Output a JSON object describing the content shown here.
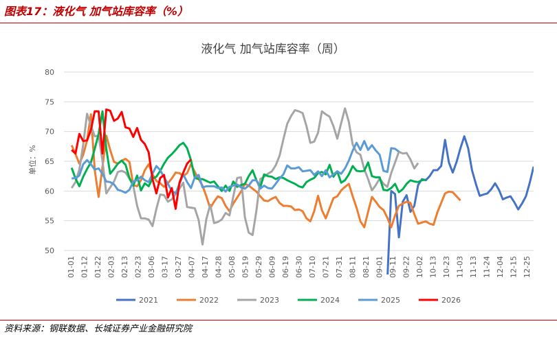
{
  "caption": "图表17：液化气 加气站库容率（%）",
  "source": "资料来源：钢联数据、长城证券产业金融研究院",
  "chart_data": {
    "type": "line",
    "title": "液化气 加气站库容率（周）",
    "ylabel": "单位：%",
    "xlabel": "",
    "ylim": [
      50,
      80
    ],
    "yticks": [
      50,
      55,
      60,
      65,
      70,
      75,
      80
    ],
    "grid": true,
    "legend": "bottom",
    "x_labels": [
      "01-01",
      "01-12",
      "01-22",
      "02-03",
      "02-13",
      "02-23",
      "03-06",
      "03-17",
      "03-27",
      "04-07",
      "04-17",
      "04-28",
      "05-08",
      "05-19",
      "05-29",
      "06-09",
      "06-19",
      "06-30",
      "07-10",
      "07-21",
      "07-31",
      "08-11",
      "08-21",
      "09-01",
      "09-11",
      "09-22",
      "10-02",
      "10-13",
      "10-23",
      "11-03",
      "11-13",
      "11-24",
      "12-04",
      "12-15",
      "12-25"
    ],
    "series": [
      {
        "name": "2021",
        "color": "#4472c4",
        "values": [
          null,
          null,
          null,
          null,
          null,
          null,
          null,
          null,
          null,
          null,
          null,
          null,
          null,
          null,
          null,
          null,
          null,
          null,
          null,
          null,
          null,
          null,
          null,
          null,
          null,
          null,
          null,
          null,
          null,
          null,
          null,
          null,
          null,
          null,
          null,
          null,
          null,
          null,
          null,
          null,
          null,
          null,
          null,
          null,
          null,
          null,
          null,
          null,
          null,
          null,
          null,
          null,
          null,
          null,
          null,
          null,
          null,
          null,
          null,
          null,
          null,
          null,
          null,
          null,
          null,
          null,
          null,
          null,
          null,
          null,
          null,
          null,
          null,
          null,
          null,
          null,
          null,
          null,
          null,
          null,
          null,
          null,
          null,
          null,
          45,
          60,
          59.5,
          52.2,
          58.2,
          59.3,
          56.5,
          57.5,
          61,
          62,
          61.8,
          62.5,
          63.5,
          63.5,
          64.2,
          68.6,
          64.8,
          63.1,
          64.9,
          67.2,
          69.2,
          67.2,
          63.5,
          61.2,
          59.2,
          59.4,
          59.6,
          60.3,
          61.3,
          60.2,
          58.6,
          58.9,
          59.1,
          58.1,
          56.9,
          57.9,
          59.1,
          61.4,
          64.1
        ]
      },
      {
        "name": "2022",
        "color": "#ed7d31",
        "values": [
          null,
          null,
          67.7,
          66.2,
          64.6,
          66.1,
          68.5,
          72.9,
          63.5,
          59.0,
          64.0,
          69.3,
          66.9,
          64.9,
          64.6,
          65.1,
          65.4,
          64.9,
          61.0,
          60.8,
          61.8,
          63.5,
          64.5,
          62.8,
          61.7,
          61.3,
          60.7,
          61.3,
          62.1,
          63.1,
          63.0,
          62.5,
          63.0,
          64.5,
          63.2,
          62.0,
          60.9,
          59.1,
          57.1,
          58.2,
          59.1,
          58.8,
          57.5,
          56.6,
          57.9,
          58.9,
          59.9,
          61.2,
          60.9,
          60.4,
          59.9,
          59.1,
          58.4,
          58.3,
          58.7,
          59.0,
          58.0,
          57.5,
          57.5,
          57.4,
          56.8,
          56.9,
          56.6,
          55.4,
          54.9,
          56.6,
          59.2,
          56.8,
          55.4,
          57.1,
          58.8,
          59.1,
          60.1,
          60.7,
          61.2,
          59.1,
          57.2,
          54.9,
          53.9,
          56.5,
          59.0,
          58.2,
          57.3,
          56.8,
          55.5,
          53.9,
          55.9,
          57.5,
          57.9,
          58.2,
          58.0,
          56.1,
          54.5,
          54.7,
          54.9,
          54.5,
          54.3,
          56.4,
          58.0,
          59.6,
          59.9,
          59.8,
          59.1,
          58.4
        ]
      },
      {
        "name": "2023",
        "color": "#a5a5a5",
        "values": [
          null,
          null,
          60.5,
          61.5,
          63.6,
          67.8,
          73.0,
          71.0,
          69.2,
          69.3,
          65.1,
          59.6,
          60.6,
          61.6,
          63.2,
          63.4,
          63.1,
          62.1,
          60.9,
          57.5,
          55.4,
          55.4,
          55.2,
          54.1,
          57.0,
          59.4,
          59.3,
          58.2,
          58.6,
          59.5,
          60.4,
          61.4,
          57.3,
          57.2,
          57.1,
          55.1,
          51.0,
          55.3,
          57.7,
          54.6,
          54.8,
          55.2,
          56.3,
          55.9,
          59.1,
          62.2,
          62.3,
          55.6,
          53.0,
          52.6,
          56.7,
          62.0,
          62.4,
          62.9,
          63.3,
          64.3,
          65.9,
          68.7,
          71.3,
          72.6,
          73.6,
          73.4,
          73.1,
          70.9,
          68.1,
          68.3,
          69.8,
          73.4,
          72.9,
          72.5,
          70.9,
          68.8,
          71.4,
          73.9,
          71.6,
          67.8,
          66.5,
          66.1,
          63.7,
          62.0,
          60.1,
          61.0,
          62.1,
          61.2,
          60.7,
          63.0,
          64.8,
          66.6,
          66.3,
          66.4,
          65.3,
          63.8,
          64.7
        ]
      },
      {
        "name": "2024",
        "color": "#00b050",
        "values": [
          null,
          null,
          63.9,
          62.1,
          60.8,
          62.4,
          63.7,
          64.8,
          67.1,
          69.6,
          73.4,
          67.1,
          62.9,
          63.7,
          64.6,
          65.1,
          64.4,
          62.2,
          60.9,
          62.6,
          60.1,
          61.3,
          60.8,
          62.1,
          62.4,
          63.4,
          64.6,
          65.6,
          66.2,
          66.9,
          67.7,
          68.1,
          67.2,
          65.2,
          62.2,
          62.0,
          62.0,
          61.7,
          61.4,
          61.6,
          60.8,
          60.0,
          60.9,
          60.0,
          61.6,
          60.7,
          61.0,
          61.2,
          62.5,
          63.5,
          61.8,
          60.6,
          62.8,
          62.5,
          62.4,
          62.0,
          62.3,
          62.2,
          61.8,
          61.5,
          61.2,
          60.8,
          60.6,
          61.5,
          61.9,
          62.2,
          63.0,
          63.2,
          62.8,
          64.4,
          62.4,
          63.3,
          61.4,
          61.8,
          62.8,
          64.2,
          63.4,
          63.3,
          63.4,
          64.8,
          62.5,
          62.3,
          62.3,
          60.2,
          60.1,
          60.5,
          61.2,
          59.8,
          60.3,
          61.2,
          61.8,
          61.6,
          61.5,
          61.8,
          61.9
        ]
      },
      {
        "name": "2025",
        "color": "#5b9bd5",
        "values": [
          null,
          null,
          62.1,
          62.2,
          62.6,
          64.5,
          65.2,
          64.5,
          63.6,
          63.8,
          62.9,
          61.6,
          61.5,
          61.1,
          60.2,
          60.0,
          59.7,
          60.2,
          61.6,
          61.8,
          62.4,
          61.8,
          61.5,
          62.9,
          64.2,
          63.5,
          62.3,
          61.2,
          60.0,
          59.6,
          61.2,
          62.8,
          61.5,
          60.5,
          62.3,
          62.7,
          60.6,
          60.8,
          60.8,
          60.8,
          60.5,
          60.6,
          59.9,
          60.7,
          60.9,
          61.1,
          60.6,
          60.4,
          60.9,
          61.8,
          61.8,
          60.4,
          60.9,
          60.5,
          60.4,
          61.2,
          62.1,
          62.8,
          64.3,
          63.8,
          63.8,
          64.0,
          63.3,
          63.4,
          63.5,
          62.7,
          63.3,
          62.5,
          63.5,
          62.3,
          62.8,
          63.3,
          62.9,
          63.8,
          65.1,
          66.8,
          68.1,
          66.9,
          68.4,
          66.9,
          67.7,
          66.8,
          66.1,
          63.4,
          63.2,
          67.2,
          67.1,
          66.6
        ]
      },
      {
        "name": "2026",
        "color": "#ff0000",
        "values": [
          null,
          null,
          66.9,
          66.3,
          69.6,
          68.4,
          68.5,
          70.3,
          73.4,
          73.4,
          66.3,
          73.7,
          73.5,
          71.8,
          72.2,
          73.3,
          70.7,
          70.5,
          69.1,
          70.6,
          68.6,
          67.9,
          66.5,
          62.0,
          59.6,
          62.2,
          62.7,
          58.9,
          60.5,
          57.0,
          61.4,
          63.1,
          64.6,
          65.3
        ]
      }
    ]
  }
}
